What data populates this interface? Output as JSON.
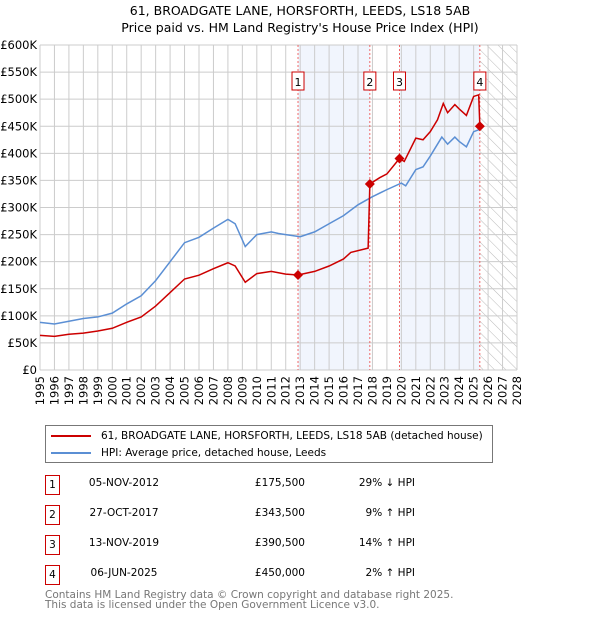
{
  "title": "61, BROADGATE LANE, HORSFORTH, LEEDS, LS18 5AB",
  "subtitle": "Price paid vs. HM Land Registry's House Price Index (HPI)",
  "chart_data": {
    "type": "line",
    "ylim": [
      0,
      600000
    ],
    "xlim": [
      1995,
      2028
    ],
    "yticks": [
      0,
      50000,
      100000,
      150000,
      200000,
      250000,
      300000,
      350000,
      400000,
      450000,
      500000,
      550000,
      600000
    ],
    "ytick_labels": [
      "£0",
      "£50K",
      "£100K",
      "£150K",
      "£200K",
      "£250K",
      "£300K",
      "£350K",
      "£400K",
      "£450K",
      "£500K",
      "£550K",
      "£600K"
    ],
    "xticks": [
      1995,
      1996,
      1997,
      1998,
      1999,
      2000,
      2001,
      2002,
      2003,
      2004,
      2005,
      2006,
      2007,
      2008,
      2009,
      2010,
      2011,
      2012,
      2013,
      2014,
      2015,
      2016,
      2017,
      2018,
      2019,
      2020,
      2021,
      2022,
      2023,
      2024,
      2025,
      2026,
      2027,
      2028
    ],
    "grid": true,
    "series": [
      {
        "name": "61, BROADGATE LANE, HORSFORTH, LEEDS, LS18 5AB (detached house)",
        "color": "#cc0000",
        "x": [
          1995,
          1996,
          1997,
          1998,
          1999,
          2000,
          2001,
          2002,
          2003,
          2004,
          2005,
          2006,
          2007,
          2008,
          2008.5,
          2009.2,
          2010,
          2011,
          2012,
          2012.85,
          2014,
          2015,
          2016,
          2016.5,
          2017.7,
          2017.82,
          2018.5,
          2019,
          2019.87,
          2020.2,
          2021,
          2021.5,
          2022,
          2022.5,
          2022.9,
          2023.2,
          2023.7,
          2024,
          2024.5,
          2025,
          2025.35,
          2025.43
        ],
        "y": [
          64000,
          62000,
          66000,
          68000,
          72000,
          77000,
          88000,
          98000,
          118000,
          143000,
          168000,
          175000,
          187000,
          198000,
          192000,
          162000,
          178000,
          182000,
          177000,
          175500,
          182000,
          192000,
          205000,
          217000,
          225000,
          343500,
          355000,
          362000,
          390500,
          385000,
          428000,
          425000,
          440000,
          462000,
          492000,
          475000,
          490000,
          482000,
          470000,
          505000,
          508000,
          450000
        ]
      },
      {
        "name": "HPI: Average price, detached house, Leeds",
        "color": "#5b8fd4",
        "x": [
          1995,
          1996,
          1997,
          1998,
          1999,
          2000,
          2001,
          2002,
          2003,
          2004,
          2005,
          2006,
          2007,
          2008,
          2008.5,
          2009.2,
          2010,
          2011,
          2011.5,
          2012,
          2013,
          2014,
          2015,
          2016,
          2017,
          2018,
          2019,
          2020,
          2020.3,
          2021,
          2021.5,
          2022,
          2022.8,
          2023.2,
          2023.7,
          2024,
          2024.5,
          2025,
          2025.5
        ],
        "y": [
          88000,
          85000,
          90000,
          95000,
          98000,
          105000,
          122000,
          137000,
          165000,
          200000,
          235000,
          245000,
          262000,
          278000,
          270000,
          228000,
          250000,
          255000,
          252000,
          250000,
          246000,
          255000,
          270000,
          285000,
          305000,
          320000,
          333000,
          345000,
          340000,
          370000,
          375000,
          395000,
          430000,
          417000,
          430000,
          422000,
          412000,
          440000,
          445000
        ]
      }
    ],
    "sales": [
      {
        "n": "1",
        "date": "05-NOV-2012",
        "x": 2012.85,
        "price": "£175,500",
        "value": 175500,
        "hpi": "29% ↓ HPI"
      },
      {
        "n": "2",
        "date": "27-OCT-2017",
        "x": 2017.82,
        "price": "£343,500",
        "value": 343500,
        "hpi": "9% ↑ HPI"
      },
      {
        "n": "3",
        "date": "13-NOV-2019",
        "x": 2019.87,
        "price": "£390,500",
        "value": 390500,
        "hpi": "14% ↑ HPI"
      },
      {
        "n": "4",
        "date": "06-JUN-2025",
        "x": 2025.43,
        "price": "£450,000",
        "value": 450000,
        "hpi": "2% ↑ HPI"
      }
    ],
    "legend_position": "below"
  },
  "footer": [
    "Contains HM Land Registry data © Crown copyright and database right 2025.",
    "This data is licensed under the Open Government Licence v3.0."
  ]
}
